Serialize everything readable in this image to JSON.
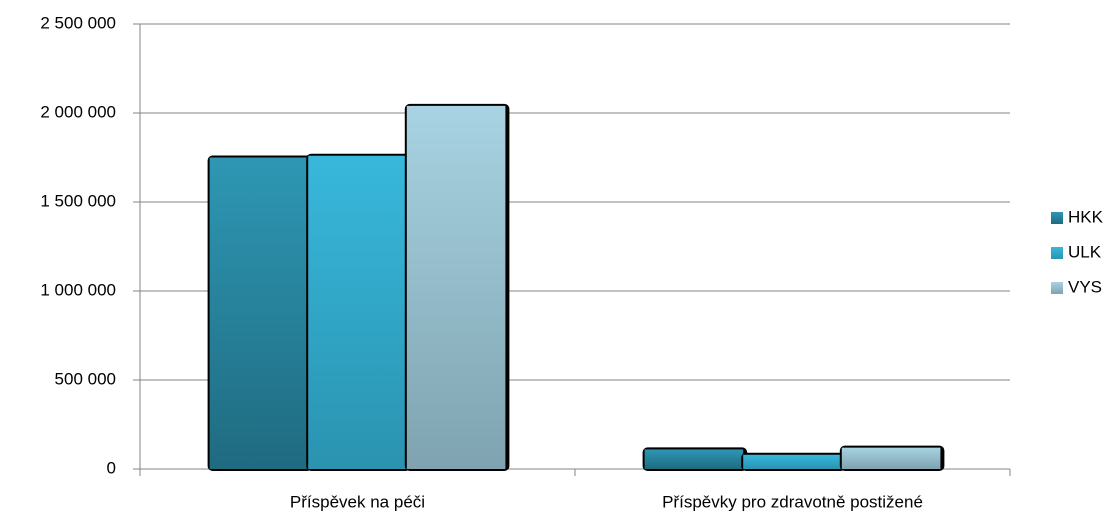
{
  "chart_data": {
    "type": "bar",
    "categories": [
      "Příspěvek na péči",
      "Příspěvky pro zdravotně postižené"
    ],
    "series": [
      {
        "name": "HKK",
        "color": "#2a8aa5",
        "values": [
          1750000,
          110000
        ]
      },
      {
        "name": "ULK",
        "color": "#33b0d4",
        "values": [
          1760000,
          80000
        ]
      },
      {
        "name": "VYS",
        "color": "#9fcbdb",
        "values": [
          2040000,
          120000
        ]
      }
    ],
    "ylim": [
      0,
      2500000
    ],
    "yticks": [
      0,
      {
        "value": 500000,
        "label": "500 000"
      },
      {
        "value": 1000000,
        "label": "1 000 000"
      },
      {
        "value": 1500000,
        "label": "1 500 000"
      },
      {
        "value": 2000000,
        "label": "2 000 000"
      },
      {
        "value": 2500000,
        "label": "2 500 000"
      }
    ],
    "grid": true,
    "legend": "right"
  }
}
